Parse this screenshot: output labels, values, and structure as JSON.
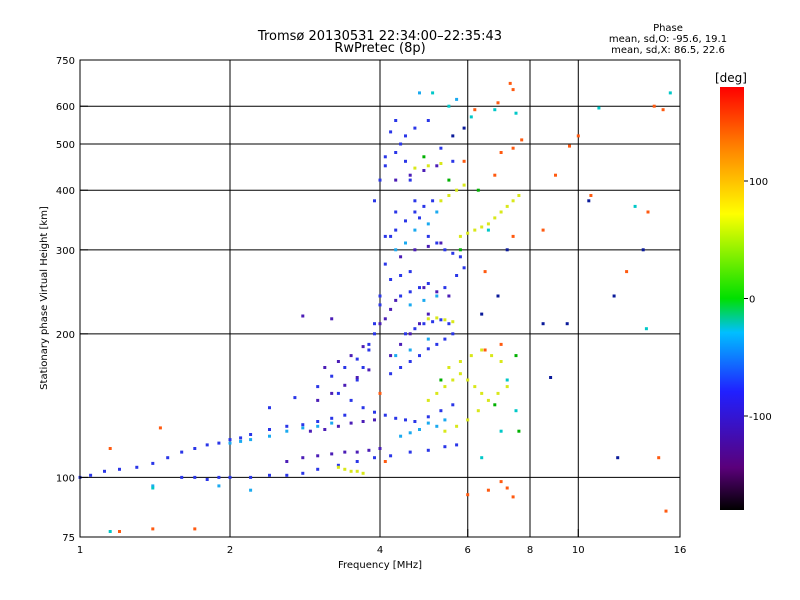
{
  "chart_data": {
    "type": "scatter",
    "title": "Tromsø 20130531 22:34:00–22:35:43",
    "subtitle": "RwPretec (8p)",
    "xlabel": "Frequency [MHz]",
    "ylabel": "Stationary phase Virtual Height [km]",
    "x_scale": "log",
    "y_scale": "log",
    "xlim": [
      1,
      16
    ],
    "ylim": [
      75,
      750
    ],
    "x_ticks": [
      1,
      2,
      4,
      6,
      8,
      10,
      16
    ],
    "y_ticks": [
      75,
      100,
      200,
      300,
      400,
      500,
      600,
      750
    ],
    "grid": true,
    "phase_stats": {
      "title": "Phase",
      "line_o": "mean, sd,O: -95.6, 19.1",
      "line_x": "mean, sd,X: 86.5, 22.6"
    },
    "colorbar": {
      "label": "[deg]",
      "range": [
        -180,
        180
      ],
      "ticks": [
        100,
        0,
        -100
      ],
      "colors": [
        "#000000",
        "#5a007a",
        "#2020ff",
        "#00bfff",
        "#00e000",
        "#ffff00",
        "#ff8000",
        "#ff0000"
      ]
    },
    "series": [
      {
        "color": "#2a36e8",
        "points": [
          [
            1.0,
            100
          ],
          [
            1.05,
            101
          ],
          [
            1.12,
            103
          ],
          [
            1.2,
            104
          ],
          [
            1.3,
            105
          ],
          [
            1.4,
            107
          ],
          [
            1.5,
            110
          ],
          [
            1.6,
            113
          ],
          [
            1.7,
            115
          ],
          [
            1.8,
            117
          ],
          [
            1.9,
            118
          ],
          [
            2.0,
            120
          ],
          [
            2.1,
            121
          ],
          [
            2.2,
            123
          ],
          [
            2.4,
            126
          ],
          [
            2.6,
            128
          ],
          [
            2.8,
            129
          ],
          [
            3.0,
            131
          ],
          [
            3.2,
            133
          ],
          [
            3.4,
            135
          ],
          [
            1.6,
            100
          ],
          [
            1.7,
            100
          ],
          [
            1.8,
            99
          ],
          [
            1.9,
            100
          ],
          [
            2.0,
            100
          ],
          [
            2.2,
            100
          ],
          [
            2.4,
            101
          ],
          [
            2.6,
            101
          ],
          [
            2.8,
            102
          ],
          [
            3.0,
            104
          ],
          [
            3.3,
            106
          ],
          [
            3.6,
            108
          ],
          [
            3.9,
            110
          ],
          [
            4.2,
            111
          ],
          [
            4.6,
            113
          ],
          [
            5.0,
            114
          ],
          [
            5.4,
            116
          ],
          [
            5.7,
            117
          ],
          [
            2.4,
            140
          ],
          [
            2.7,
            147
          ],
          [
            3.0,
            155
          ],
          [
            3.2,
            163
          ],
          [
            3.4,
            170
          ],
          [
            3.6,
            177
          ],
          [
            3.8,
            185
          ],
          [
            3.3,
            150
          ],
          [
            3.5,
            145
          ],
          [
            3.7,
            140
          ],
          [
            3.9,
            137
          ],
          [
            4.1,
            135
          ],
          [
            4.3,
            133
          ],
          [
            4.5,
            132
          ],
          [
            4.7,
            131
          ],
          [
            5.0,
            134
          ],
          [
            5.3,
            138
          ],
          [
            5.6,
            142
          ],
          [
            3.9,
            200
          ],
          [
            4.0,
            240
          ],
          [
            4.1,
            280
          ],
          [
            4.2,
            320
          ],
          [
            4.3,
            360
          ],
          [
            3.9,
            380
          ],
          [
            4.0,
            420
          ],
          [
            4.1,
            470
          ],
          [
            4.2,
            530
          ],
          [
            4.3,
            560
          ],
          [
            4.4,
            500
          ],
          [
            4.5,
            460
          ],
          [
            4.6,
            420
          ],
          [
            4.7,
            380
          ],
          [
            4.8,
            350
          ],
          [
            5.0,
            320
          ],
          [
            5.2,
            310
          ],
          [
            5.4,
            300
          ],
          [
            5.6,
            295
          ],
          [
            5.8,
            290
          ],
          [
            4.1,
            320
          ],
          [
            4.3,
            330
          ],
          [
            4.5,
            345
          ],
          [
            4.7,
            360
          ],
          [
            4.9,
            370
          ],
          [
            5.1,
            380
          ],
          [
            4.5,
            200
          ],
          [
            4.7,
            205
          ],
          [
            4.9,
            210
          ],
          [
            5.1,
            212
          ],
          [
            5.3,
            214
          ],
          [
            5.5,
            210
          ],
          [
            4.4,
            240
          ],
          [
            4.6,
            245
          ],
          [
            4.8,
            250
          ],
          [
            5.0,
            255
          ],
          [
            4.2,
            260
          ],
          [
            4.4,
            265
          ],
          [
            4.6,
            270
          ],
          [
            4.2,
            165
          ],
          [
            4.4,
            170
          ],
          [
            4.6,
            175
          ],
          [
            4.8,
            180
          ],
          [
            5.0,
            186
          ],
          [
            5.2,
            190
          ],
          [
            5.4,
            195
          ],
          [
            5.6,
            200
          ],
          [
            4.1,
            450
          ],
          [
            4.3,
            480
          ],
          [
            4.5,
            520
          ],
          [
            4.7,
            540
          ],
          [
            5.0,
            560
          ],
          [
            5.3,
            490
          ],
          [
            5.6,
            460
          ],
          [
            3.6,
            160
          ],
          [
            3.7,
            170
          ],
          [
            3.8,
            190
          ],
          [
            3.9,
            210
          ],
          [
            4.0,
            230
          ],
          [
            5.4,
            250
          ],
          [
            5.7,
            265
          ],
          [
            5.9,
            275
          ]
        ]
      },
      {
        "color": "#4b1db6",
        "points": [
          [
            2.6,
            108
          ],
          [
            2.8,
            110
          ],
          [
            3.0,
            111
          ],
          [
            3.2,
            112
          ],
          [
            3.4,
            113
          ],
          [
            3.6,
            113
          ],
          [
            3.8,
            114
          ],
          [
            4.0,
            115
          ],
          [
            2.9,
            125
          ],
          [
            3.1,
            126
          ],
          [
            3.3,
            128
          ],
          [
            3.5,
            130
          ],
          [
            3.7,
            131
          ],
          [
            3.9,
            132
          ],
          [
            3.0,
            145
          ],
          [
            3.2,
            150
          ],
          [
            3.4,
            156
          ],
          [
            3.6,
            162
          ],
          [
            3.8,
            168
          ],
          [
            3.1,
            170
          ],
          [
            3.3,
            175
          ],
          [
            3.5,
            180
          ],
          [
            3.7,
            188
          ],
          [
            4.2,
            180
          ],
          [
            4.4,
            190
          ],
          [
            4.6,
            200
          ],
          [
            4.8,
            210
          ],
          [
            5.0,
            220
          ],
          [
            4.3,
            420
          ],
          [
            4.6,
            430
          ],
          [
            4.9,
            440
          ],
          [
            5.2,
            450
          ],
          [
            4.4,
            290
          ],
          [
            4.7,
            300
          ],
          [
            5.0,
            305
          ],
          [
            5.3,
            310
          ],
          [
            4.0,
            210
          ],
          [
            4.1,
            215
          ],
          [
            4.2,
            225
          ],
          [
            4.3,
            235
          ],
          [
            4.9,
            250
          ],
          [
            5.2,
            245
          ],
          [
            5.5,
            240
          ],
          [
            3.2,
            215
          ],
          [
            2.8,
            218
          ]
        ]
      },
      {
        "color": "#1aaaf0",
        "points": [
          [
            2.0,
            118
          ],
          [
            2.1,
            119
          ],
          [
            2.2,
            120
          ],
          [
            2.4,
            122
          ],
          [
            2.6,
            125
          ],
          [
            2.8,
            127
          ],
          [
            3.0,
            128
          ],
          [
            3.2,
            130
          ],
          [
            4.4,
            122
          ],
          [
            4.6,
            124
          ],
          [
            4.8,
            126
          ],
          [
            5.0,
            130
          ],
          [
            5.2,
            128
          ],
          [
            5.4,
            132
          ],
          [
            4.3,
            300
          ],
          [
            4.5,
            310
          ],
          [
            4.7,
            330
          ],
          [
            5.0,
            340
          ],
          [
            5.2,
            360
          ],
          [
            4.6,
            230
          ],
          [
            4.9,
            235
          ],
          [
            5.2,
            240
          ],
          [
            5.7,
            620
          ],
          [
            4.8,
            640
          ],
          [
            1.4,
            96
          ],
          [
            1.9,
            96
          ],
          [
            2.2,
            94
          ],
          [
            4.3,
            180
          ],
          [
            4.6,
            185
          ],
          [
            5.0,
            195
          ]
        ]
      },
      {
        "color": "#d9e81a",
        "points": [
          [
            3.3,
            105
          ],
          [
            3.4,
            104
          ],
          [
            3.5,
            103
          ],
          [
            3.6,
            103
          ],
          [
            3.7,
            102
          ],
          [
            5.0,
            215
          ],
          [
            5.2,
            216
          ],
          [
            5.4,
            214
          ],
          [
            5.6,
            212
          ],
          [
            5.8,
            320
          ],
          [
            6.0,
            325
          ],
          [
            6.2,
            330
          ],
          [
            6.4,
            335
          ],
          [
            6.6,
            340
          ],
          [
            6.8,
            350
          ],
          [
            7.0,
            360
          ],
          [
            7.2,
            370
          ],
          [
            7.4,
            380
          ],
          [
            7.6,
            390
          ],
          [
            5.0,
            145
          ],
          [
            5.2,
            150
          ],
          [
            5.4,
            155
          ],
          [
            5.6,
            160
          ],
          [
            5.8,
            165
          ],
          [
            6.0,
            160
          ],
          [
            6.2,
            155
          ],
          [
            6.4,
            150
          ],
          [
            5.3,
            380
          ],
          [
            5.5,
            390
          ],
          [
            5.7,
            400
          ],
          [
            5.9,
            410
          ],
          [
            4.7,
            445
          ],
          [
            5.0,
            450
          ],
          [
            5.3,
            455
          ],
          [
            5.5,
            170
          ],
          [
            5.8,
            175
          ],
          [
            6.1,
            180
          ],
          [
            6.4,
            185
          ],
          [
            6.7,
            180
          ],
          [
            7.0,
            175
          ],
          [
            5.4,
            125
          ],
          [
            5.7,
            128
          ],
          [
            6.0,
            132
          ],
          [
            6.3,
            138
          ],
          [
            6.6,
            145
          ],
          [
            6.9,
            150
          ],
          [
            7.2,
            155
          ]
        ]
      },
      {
        "color": "#ff5a10",
        "points": [
          [
            1.15,
            115
          ],
          [
            1.2,
            77
          ],
          [
            1.4,
            78
          ],
          [
            1.7,
            78
          ],
          [
            1.45,
            127
          ],
          [
            4.1,
            108
          ],
          [
            6.5,
            185
          ],
          [
            6.8,
            430
          ],
          [
            7.0,
            480
          ],
          [
            7.4,
            490
          ],
          [
            6.2,
            590
          ],
          [
            6.9,
            610
          ],
          [
            7.3,
            670
          ],
          [
            7.4,
            650
          ],
          [
            7.7,
            510
          ],
          [
            8.5,
            330
          ],
          [
            9.0,
            430
          ],
          [
            9.6,
            495
          ],
          [
            10.0,
            520
          ],
          [
            10.6,
            390
          ],
          [
            12.5,
            270
          ],
          [
            13.8,
            360
          ],
          [
            14.5,
            110
          ],
          [
            15.0,
            85
          ],
          [
            14.8,
            590
          ],
          [
            14.2,
            600
          ],
          [
            6.0,
            92
          ],
          [
            6.6,
            94
          ],
          [
            7.0,
            98
          ],
          [
            7.2,
            95
          ],
          [
            7.4,
            91
          ],
          [
            4.0,
            150
          ],
          [
            5.9,
            460
          ],
          [
            6.5,
            270
          ],
          [
            7.0,
            190
          ],
          [
            7.4,
            320
          ]
        ]
      },
      {
        "color": "#00c8c8",
        "points": [
          [
            1.15,
            77
          ],
          [
            1.4,
            95
          ],
          [
            5.1,
            640
          ],
          [
            6.8,
            590
          ],
          [
            7.5,
            580
          ],
          [
            11.0,
            595
          ],
          [
            13.7,
            205
          ],
          [
            13.0,
            370
          ],
          [
            15.3,
            640
          ],
          [
            6.4,
            110
          ],
          [
            7.0,
            125
          ],
          [
            7.5,
            138
          ],
          [
            5.5,
            600
          ],
          [
            6.1,
            570
          ],
          [
            6.6,
            330
          ],
          [
            7.2,
            160
          ]
        ]
      },
      {
        "color": "#00b000",
        "points": [
          [
            7.5,
            180
          ],
          [
            7.6,
            125
          ],
          [
            6.8,
            142
          ],
          [
            5.3,
            160
          ],
          [
            5.5,
            420
          ],
          [
            6.3,
            400
          ],
          [
            4.9,
            470
          ],
          [
            5.8,
            300
          ]
        ]
      },
      {
        "color": "#0a1a9a",
        "points": [
          [
            8.5,
            210
          ],
          [
            8.8,
            162
          ],
          [
            11.8,
            240
          ],
          [
            12.0,
            110
          ],
          [
            13.5,
            300
          ],
          [
            6.4,
            220
          ],
          [
            6.9,
            240
          ],
          [
            7.2,
            300
          ],
          [
            5.6,
            520
          ],
          [
            5.9,
            540
          ],
          [
            10.5,
            380
          ],
          [
            9.5,
            210
          ]
        ]
      }
    ]
  }
}
